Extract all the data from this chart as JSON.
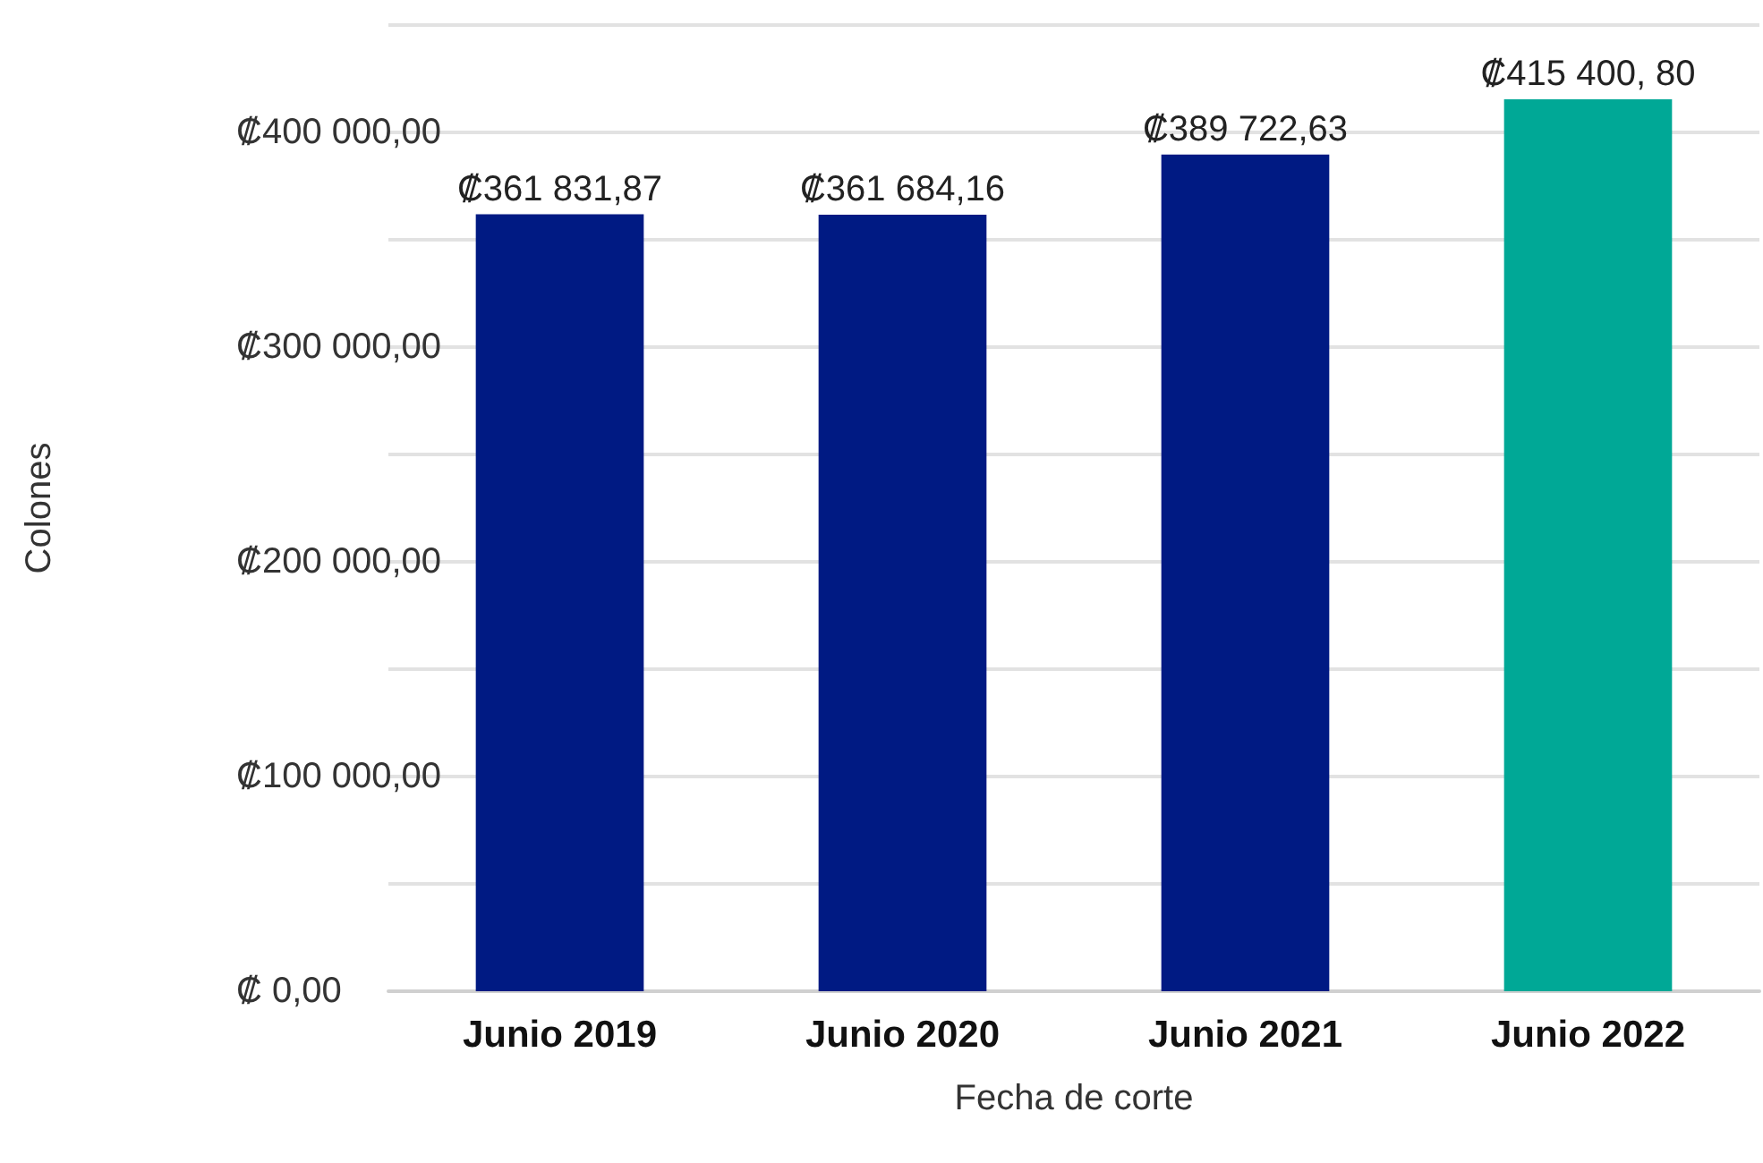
{
  "chart_data": {
    "type": "bar",
    "xlabel": "Fecha de corte",
    "ylabel": "Colones",
    "categories": [
      "Junio 2019",
      "Junio 2020",
      "Junio 2021",
      "Junio 2022"
    ],
    "values": [
      361831.87,
      361684.16,
      389722.63,
      415400.8
    ],
    "colors": [
      "#001a83",
      "#001a83",
      "#001a83",
      "#00a896"
    ],
    "value_labels": [
      "₡361 831,87",
      "₡361 684,16",
      "₡389 722,63",
      "₡415 400, 80"
    ],
    "ylim": [
      0,
      450000
    ],
    "yticks": [
      {
        "value": 0,
        "label": "₡ 0,00"
      },
      {
        "value": 50000,
        "label": null
      },
      {
        "value": 100000,
        "label": "₡100 000,00"
      },
      {
        "value": 150000,
        "label": null
      },
      {
        "value": 200000,
        "label": "₡200 000,00"
      },
      {
        "value": 250000,
        "label": null
      },
      {
        "value": 300000,
        "label": "₡300 000,00"
      },
      {
        "value": 350000,
        "label": null
      },
      {
        "value": 400000,
        "label": "₡400 000,00"
      },
      {
        "value": 450000,
        "label": null
      }
    ],
    "grid": "y"
  }
}
